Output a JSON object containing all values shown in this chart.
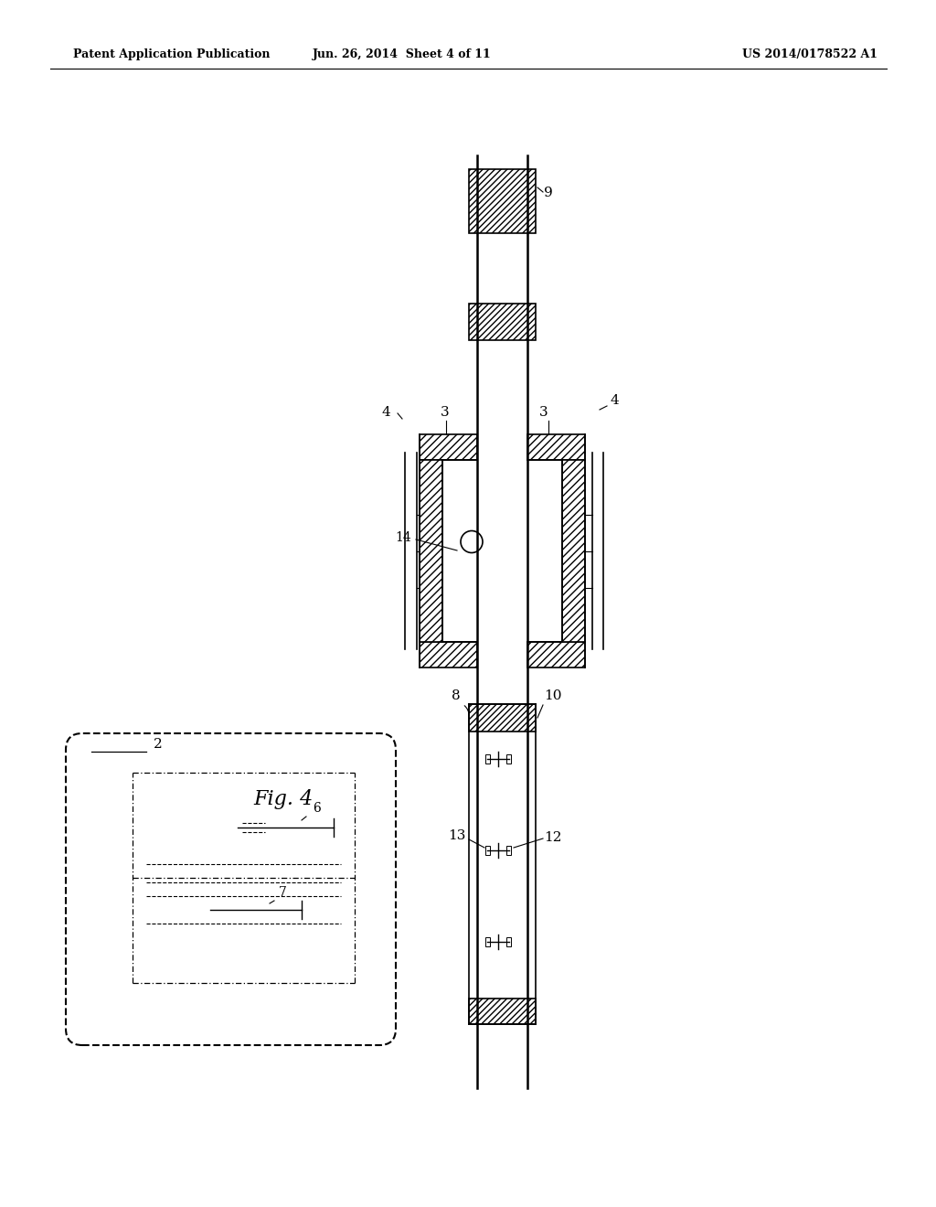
{
  "header_left": "Patent Application Publication",
  "header_middle": "Jun. 26, 2014  Sheet 4 of 11",
  "header_right": "US 2014/0178522 A1",
  "fig_label": "Fig. 4",
  "background": "#ffffff",
  "line_color": "#000000"
}
